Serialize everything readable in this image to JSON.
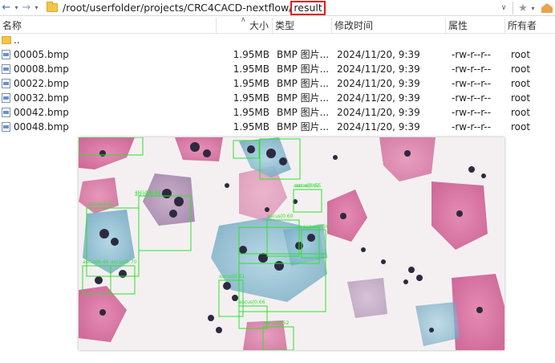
{
  "address": {
    "path_prefix": "/root/userfolder/projects/CRC4CACD-nextflow/",
    "path_highlight": "result"
  },
  "icons": [
    "back-arrow-icon",
    "forward-arrow-icon",
    "folder-icon",
    "dropdown-icon",
    "star-icon",
    "home-icon",
    "file-icon"
  ],
  "columns": {
    "name": "名称",
    "size": "大小",
    "type": "类型",
    "modified": "修改时间",
    "attrs": "属性",
    "owner": "所有者"
  },
  "parent_row": {
    "name": ".."
  },
  "files": [
    {
      "name": "00005.bmp",
      "size": "1.95MB",
      "type": "BMP 图片...",
      "modified": "2024/11/20, 9:39",
      "attrs": "-rw-r--r--",
      "owner": "root"
    },
    {
      "name": "00008.bmp",
      "size": "1.95MB",
      "type": "BMP 图片...",
      "modified": "2024/11/20, 9:39",
      "attrs": "-rw-r--r--",
      "owner": "root"
    },
    {
      "name": "00022.bmp",
      "size": "1.95MB",
      "type": "BMP 图片...",
      "modified": "2024/11/20, 9:39",
      "attrs": "-rw-r--r--",
      "owner": "root"
    },
    {
      "name": "00032.bmp",
      "size": "1.95MB",
      "type": "BMP 图片...",
      "modified": "2024/11/20, 9:39",
      "attrs": "-rw-r--r--",
      "owner": "root"
    },
    {
      "name": "00042.bmp",
      "size": "1.95MB",
      "type": "BMP 图片...",
      "modified": "2024/11/20, 9:39",
      "attrs": "-rw-r--r--",
      "owner": "root"
    },
    {
      "name": "00048.bmp",
      "size": "1.95MB",
      "type": "BMP 图片...",
      "modified": "2024/11/20, 9:39",
      "attrs": "-rw-r--r--",
      "owner": "root"
    }
  ],
  "detections": [
    "ascus|0.54",
    "ascus|0.55",
    "ascus|0.60",
    "ascus|0.62",
    "ascus|0.50",
    "ascus|0.46",
    "ascus|0.70",
    "ascus|0.61",
    "ascus|0.66",
    "ascus|0.52",
    "ascus|0.55",
    "ascus|0.59"
  ]
}
